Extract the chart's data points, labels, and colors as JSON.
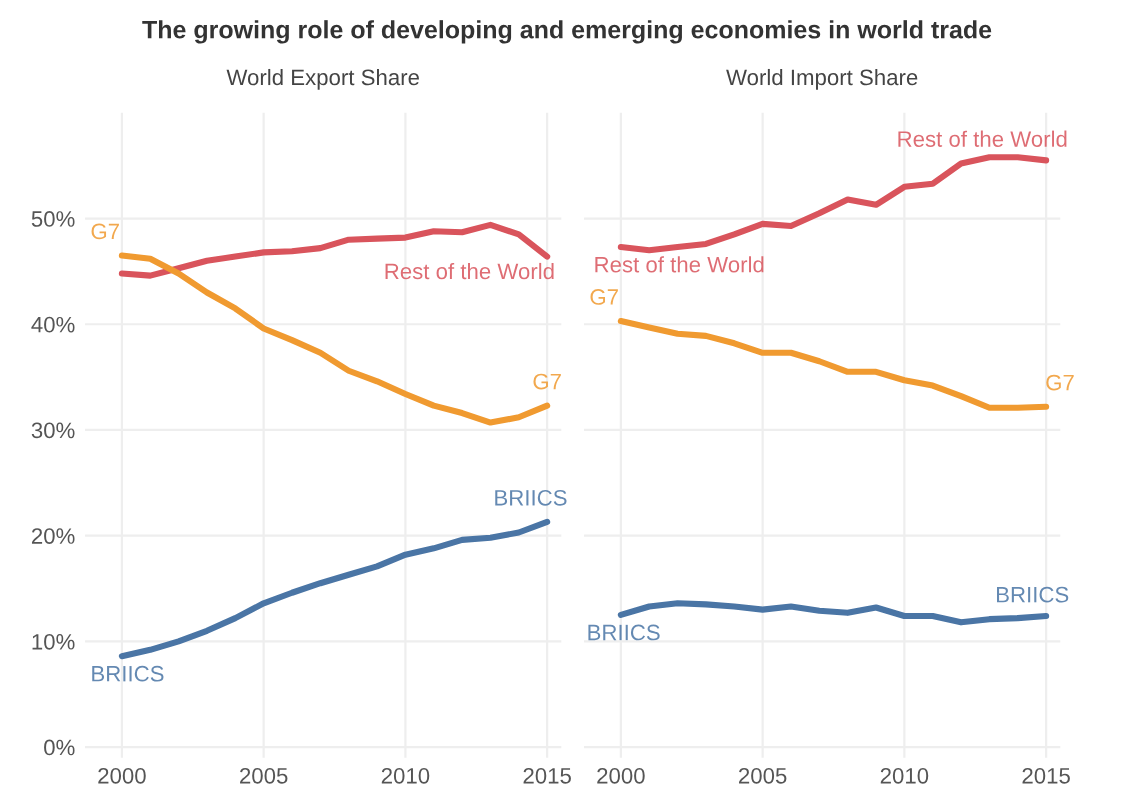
{
  "chart_data": [
    {
      "type": "line",
      "title": "The growing role of developing and emerging economies in world trade",
      "subtitle": "World Export Share",
      "x": [
        2000,
        2001,
        2002,
        2003,
        2004,
        2005,
        2006,
        2007,
        2008,
        2009,
        2010,
        2011,
        2012,
        2013,
        2014,
        2015
      ],
      "series": [
        {
          "name": "Rest of the World",
          "color": "#d9545c",
          "values": [
            44.8,
            44.6,
            45.3,
            46.0,
            46.4,
            46.8,
            46.9,
            47.2,
            48.0,
            48.1,
            48.2,
            48.8,
            48.7,
            49.4,
            48.5,
            46.4
          ]
        },
        {
          "name": "G7",
          "color": "#f09a30",
          "values": [
            46.5,
            46.2,
            44.8,
            43.0,
            41.5,
            39.6,
            38.5,
            37.3,
            35.6,
            34.6,
            33.4,
            32.3,
            31.6,
            30.7,
            31.2,
            32.3
          ]
        },
        {
          "name": "BRIICS",
          "color": "#4a75a5",
          "values": [
            8.6,
            9.2,
            10.0,
            11.0,
            12.2,
            13.6,
            14.6,
            15.5,
            16.3,
            17.1,
            18.2,
            18.8,
            19.6,
            19.8,
            20.3,
            21.3
          ]
        }
      ],
      "xlim": [
        1998.7,
        2015.5
      ],
      "ylim": [
        -1,
        60
      ],
      "xticks": [
        2000,
        2005,
        2010,
        2015
      ],
      "yticks": [
        {
          "value": 0,
          "label": "0%"
        },
        {
          "value": 10,
          "label": "10%"
        },
        {
          "value": 20,
          "label": "20%"
        },
        {
          "value": 30,
          "label": "30%"
        },
        {
          "value": 40,
          "label": "40%"
        },
        {
          "value": 50,
          "label": "50%"
        }
      ],
      "grid": true
    },
    {
      "type": "line",
      "subtitle": "World Import Share",
      "x": [
        2000,
        2001,
        2002,
        2003,
        2004,
        2005,
        2006,
        2007,
        2008,
        2009,
        2010,
        2011,
        2012,
        2013,
        2014,
        2015
      ],
      "series": [
        {
          "name": "Rest of the World",
          "color": "#d9545c",
          "values": [
            47.3,
            47.0,
            47.3,
            47.6,
            48.5,
            49.5,
            49.3,
            50.5,
            51.8,
            51.3,
            53.0,
            53.3,
            55.2,
            55.8,
            55.8,
            55.5
          ]
        },
        {
          "name": "G7",
          "color": "#f09a30",
          "values": [
            40.3,
            39.7,
            39.1,
            38.9,
            38.2,
            37.3,
            37.3,
            36.5,
            35.5,
            35.5,
            34.7,
            34.2,
            33.2,
            32.1,
            32.1,
            32.2
          ]
        },
        {
          "name": "BRIICS",
          "color": "#4a75a5",
          "values": [
            12.5,
            13.3,
            13.6,
            13.5,
            13.3,
            13.0,
            13.3,
            12.9,
            12.7,
            13.2,
            12.4,
            12.4,
            11.8,
            12.1,
            12.2,
            12.4
          ]
        }
      ],
      "xlim": [
        1998.7,
        2015.5
      ],
      "ylim": [
        -1,
        60
      ],
      "xticks": [
        2000,
        2005,
        2010,
        2015
      ],
      "yticks": [
        {
          "value": 0,
          "label": null
        },
        {
          "value": 10,
          "label": null
        },
        {
          "value": 20,
          "label": null
        },
        {
          "value": 30,
          "label": null
        },
        {
          "value": 40,
          "label": null
        },
        {
          "value": 50,
          "label": null
        }
      ],
      "grid": true,
      "tick_labels": "x"
    }
  ]
}
